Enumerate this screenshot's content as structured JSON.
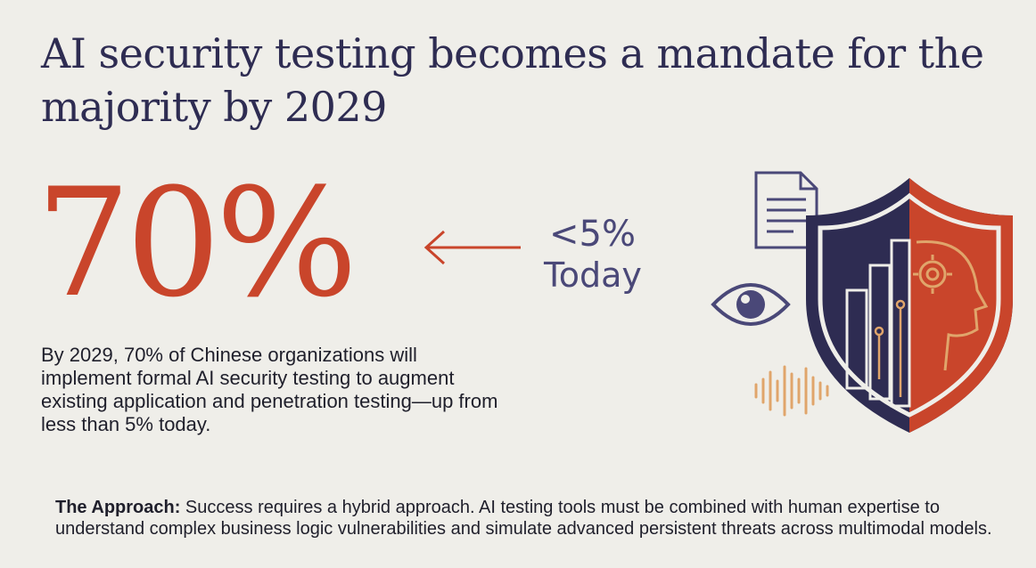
{
  "title": "AI security testing becomes a mandate for the majority by 2029",
  "stats": {
    "future_value": "70%",
    "current_value": "<5%",
    "current_label": "Today"
  },
  "description": "By 2029, 70% of Chinese organizations will implement formal AI security testing to augment existing application and penetration testing—up from less than 5% today.",
  "approach": {
    "lead": "The Approach:",
    "text": " Success requires a hybrid approach. AI testing tools must be combined with human expertise to understand complex business logic vulnerabilities and simulate advanced persistent threats across multimodal models."
  },
  "icons": [
    "arrow-left-icon",
    "document-icon",
    "eye-icon",
    "sound-wave-icon",
    "shield-icon"
  ],
  "colors": {
    "background": "#efeee9",
    "navy": "#2e2c52",
    "accent_red": "#c9452b",
    "muted_purple": "#4a4878",
    "amber": "#e0a56b"
  }
}
